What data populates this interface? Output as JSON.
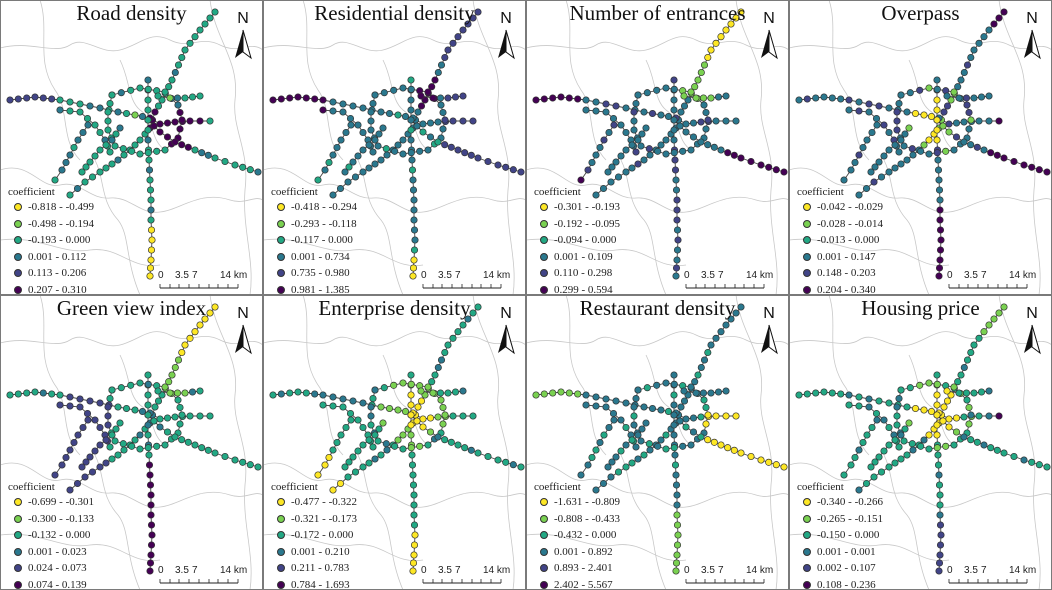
{
  "figure": {
    "legend_title": "coefficient",
    "north_label": "N",
    "scale_ticks": [
      "0",
      "3.5",
      "7",
      "14 km"
    ],
    "palette": [
      "#fde725",
      "#7ad151",
      "#22a884",
      "#2a788e",
      "#414487",
      "#440154"
    ]
  },
  "panels": [
    {
      "title": "Road density",
      "legend": [
        "-0.818 - -0.499",
        "-0.498 - -0.194",
        "-0.193 - 0.000",
        "0.001 - 0.112",
        "0.113 - 0.206",
        "0.207 - 0.310"
      ],
      "dominant_class": 2
    },
    {
      "title": "Residential density",
      "legend": [
        "-0.418 - -0.294",
        "-0.293 - -0.118",
        "-0.117 - 0.000",
        "0.001 - 0.734",
        "0.735 - 0.980",
        "0.981 - 1.385"
      ],
      "dominant_class": 3
    },
    {
      "title": "Number of entrances",
      "legend": [
        "-0.301 - -0.193",
        "-0.192 - -0.095",
        "-0.094 - 0.000",
        "0.001 - 0.109",
        "0.110 - 0.298",
        "0.299 - 0.594"
      ],
      "dominant_class": 3
    },
    {
      "title": "Overpass",
      "legend": [
        "-0.042 - -0.029",
        "-0.028 - -0.014",
        "-0.013 - 0.000",
        "0.001 - 0.147",
        "0.148 - 0.203",
        "0.204 - 0.340"
      ],
      "dominant_class": 3
    },
    {
      "title": "Green view index",
      "legend": [
        "-0.699 - -0.301",
        "-0.300 - -0.133",
        "-0.132 - 0.000",
        "0.001 - 0.023",
        "0.024 - 0.073",
        "0.074 - 0.139"
      ],
      "dominant_class": 2
    },
    {
      "title": "Enterprise density",
      "legend": [
        "-0.477 - -0.322",
        "-0.321 - -0.173",
        "-0.172 - 0.000",
        "0.001 - 0.210",
        "0.211 - 0.783",
        "0.784 - 1.693"
      ],
      "dominant_class": 2
    },
    {
      "title": "Restaurant density",
      "legend": [
        "-1.631 - -0.809",
        "-0.808 - -0.433",
        "-0.432 - 0.000",
        "0.001 - 0.892",
        "0.893 - 2.401",
        "2.402 - 5.567"
      ],
      "dominant_class": 3
    },
    {
      "title": "Housing price",
      "legend": [
        "-0.340 - -0.266",
        "-0.265 - -0.151",
        "-0.150 - 0.000",
        "0.001 - 0.001",
        "0.002 - 0.107",
        "0.108 - 0.236"
      ],
      "dominant_class": 2
    }
  ]
}
